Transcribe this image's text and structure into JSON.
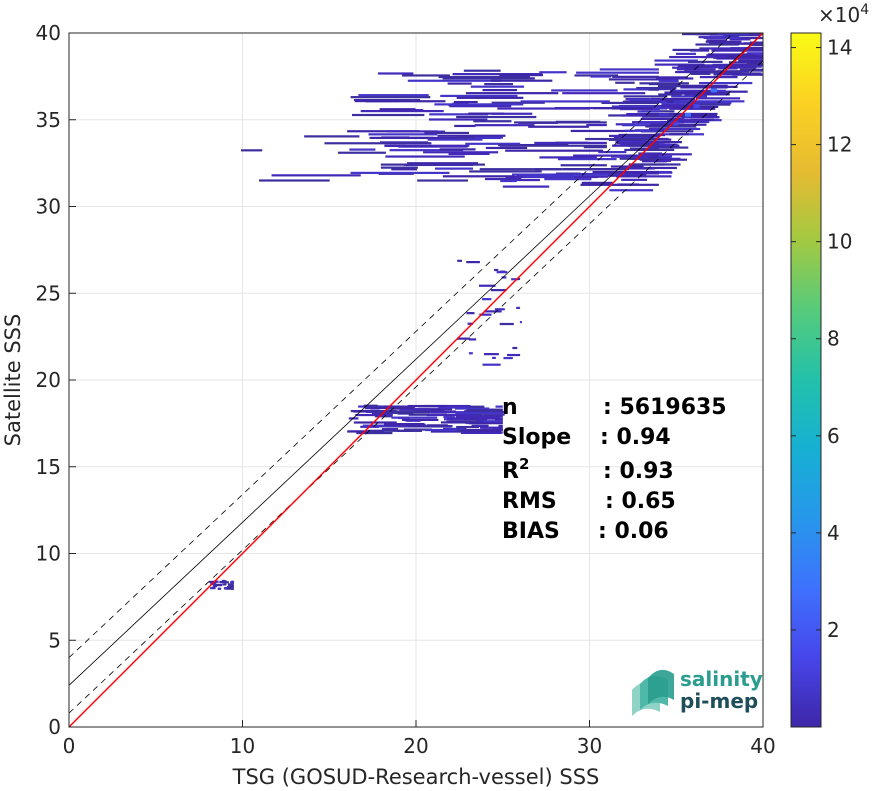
{
  "chart_data": {
    "type": "heatmap",
    "xlabel": "TSG (GOSUD-Research-vessel) SSS",
    "ylabel": "Satellite SSS",
    "xlim": [
      0,
      40
    ],
    "ylim": [
      0,
      40
    ],
    "xticks": [
      0,
      10,
      20,
      30,
      40
    ],
    "yticks": [
      0,
      5,
      10,
      15,
      20,
      25,
      30,
      35,
      40
    ],
    "grid": true,
    "colorbar": {
      "range": [
        0,
        14.3
      ],
      "ticks": [
        2,
        4,
        6,
        8,
        10,
        12,
        14
      ],
      "exponent_base": "×10",
      "exponent_power": "4",
      "colormap": [
        "#3e26a8",
        "#4746eb",
        "#3e72fe",
        "#2797eb",
        "#16b0d3",
        "#22c1aa",
        "#55cb7c",
        "#a2c942",
        "#e6bb31",
        "#fbd122",
        "#f9fb15"
      ]
    },
    "reference_lines": {
      "identity": {
        "color": "#ff0000",
        "from": [
          0,
          0
        ],
        "to": [
          40,
          40
        ]
      },
      "fit": {
        "color": "#000000",
        "slope": 0.94,
        "intercept": 2.4
      },
      "fit_bounds": {
        "style": "dashed",
        "offset": 1.6
      }
    },
    "density_regions": [
      {
        "x": [
          31,
          40
        ],
        "y": [
          31,
          40
        ],
        "level": "high"
      },
      {
        "x": [
          16,
          34
        ],
        "y": [
          31,
          38
        ],
        "level": "low"
      },
      {
        "x": [
          9,
          31
        ],
        "y": [
          31.5,
          35
        ],
        "level": "sparse"
      },
      {
        "x": [
          22,
          26
        ],
        "y": [
          20.5,
          27
        ],
        "level": "sparse"
      },
      {
        "x": [
          16,
          25
        ],
        "y": [
          17,
          18.6
        ],
        "level": "low"
      },
      {
        "x": [
          8,
          9.5
        ],
        "y": [
          8,
          8.5
        ],
        "level": "sparse"
      }
    ],
    "stats": [
      {
        "label": "n",
        "sup": "",
        "value": ": 5619635"
      },
      {
        "label": "Slope",
        "sup": "",
        "value": ": 0.94"
      },
      {
        "label": "R",
        "sup": "2",
        "value": ": 0.93"
      },
      {
        "label": "RMS",
        "sup": "",
        "value": ": 0.65"
      },
      {
        "label": "BIAS",
        "sup": "",
        "value": ": 0.06"
      }
    ]
  },
  "logo": {
    "line1": "salinity",
    "line2": "pi-mep"
  }
}
